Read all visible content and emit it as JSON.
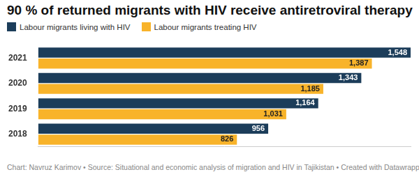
{
  "chart_data": {
    "type": "bar",
    "orientation": "horizontal",
    "title": "90 % of returned migrants with HIV receive antiretroviral therapy",
    "categories": [
      "2021",
      "2020",
      "2019",
      "2018"
    ],
    "series": [
      {
        "name": "Labour migrants living with HIV",
        "color": "#1c3d5a",
        "values": [
          1548,
          1343,
          1164,
          956
        ],
        "value_labels": [
          "1,548",
          "1,343",
          "1,164",
          "956"
        ]
      },
      {
        "name": "Labour migrants treating HIV",
        "color": "#f8b32a",
        "values": [
          1387,
          1185,
          1031,
          826
        ],
        "value_labels": [
          "1,387",
          "1,185",
          "1,031",
          "826"
        ]
      }
    ],
    "xlim": [
      0,
      1548
    ],
    "data_labels": true,
    "tick_labels": "y",
    "grid": false,
    "legend": "top-left",
    "source": "Chart: Navruz Karimov • Source: Situational and economic analysis of migration and HIV in Tajikistan • Created with Datawrapper"
  }
}
